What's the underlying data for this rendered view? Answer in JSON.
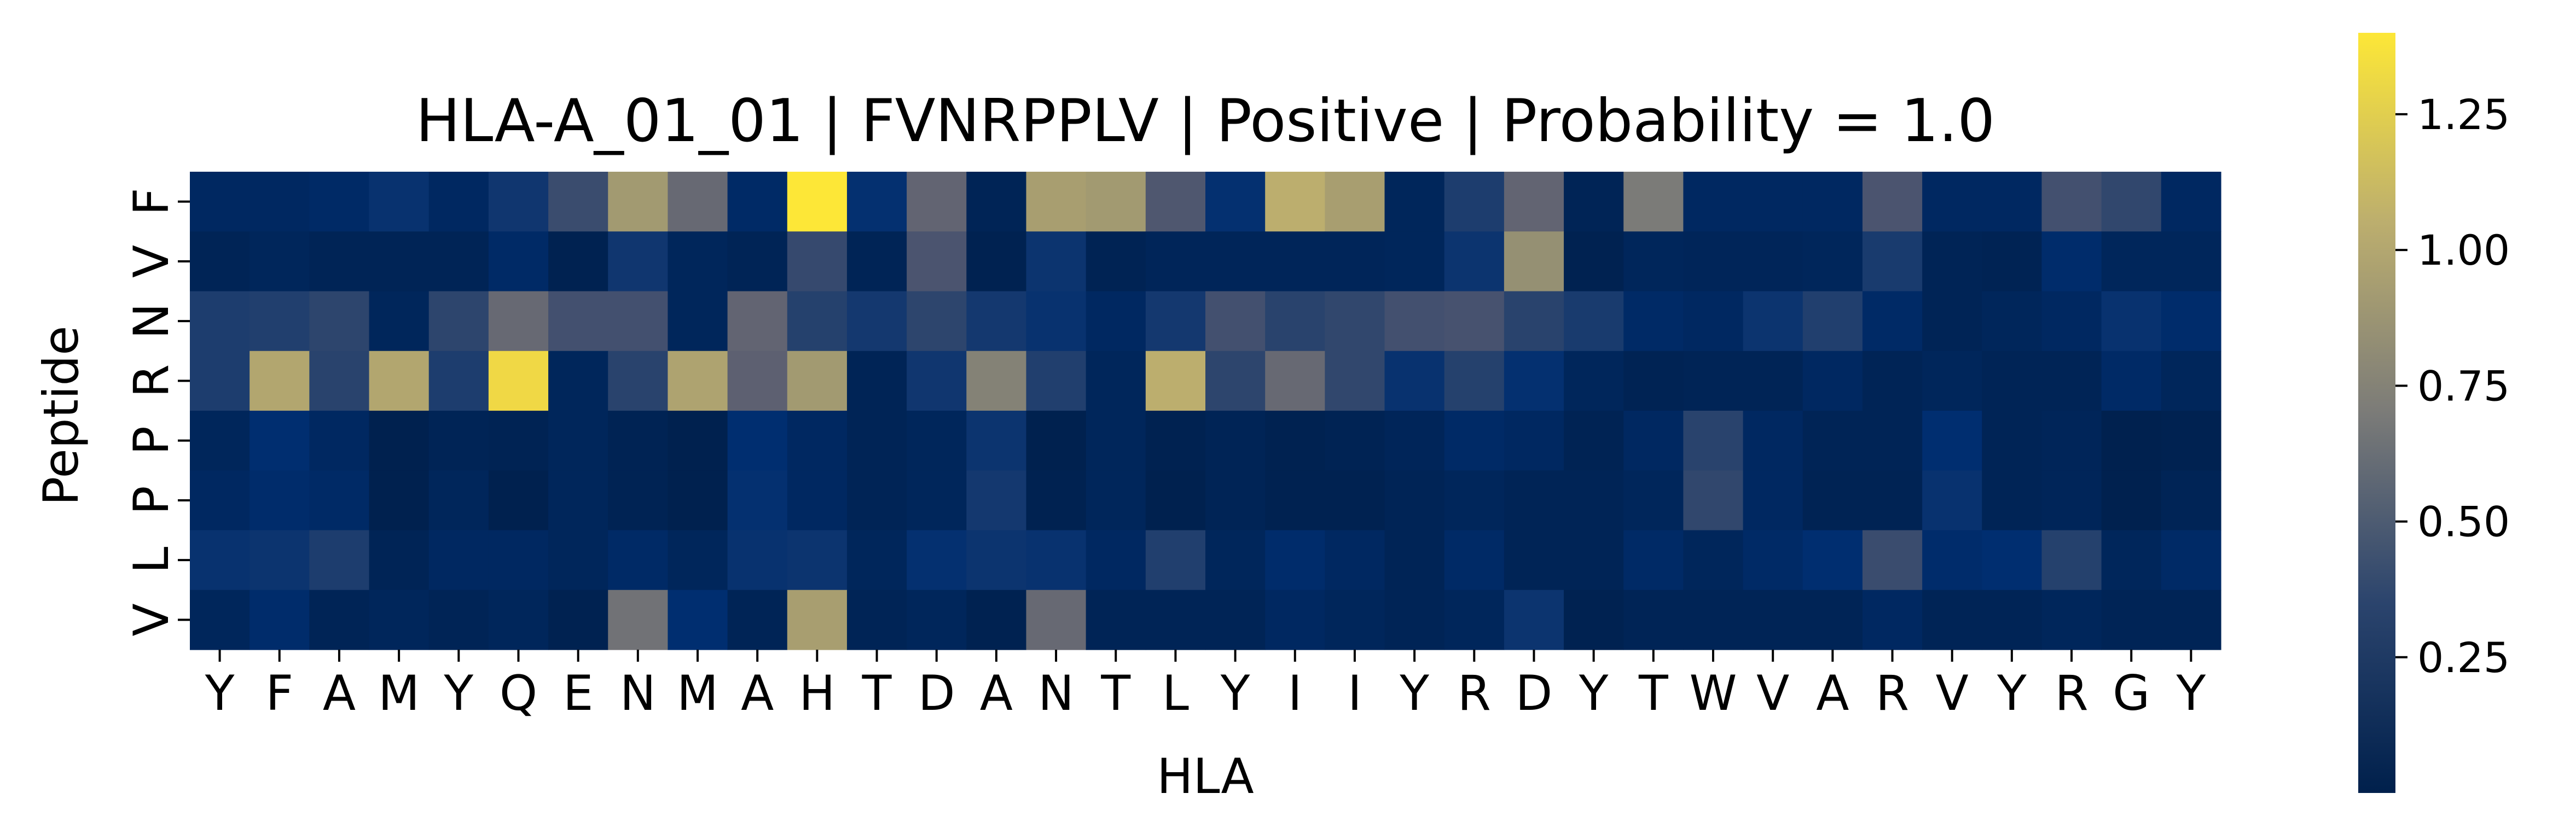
{
  "chart_data": {
    "type": "heatmap",
    "title": "HLA-A_01_01 | FVNRPPLV | Positive | Probability = 1.0",
    "xlabel": "HLA",
    "ylabel": "Peptide",
    "x_categories": [
      "Y",
      "F",
      "A",
      "M",
      "Y",
      "Q",
      "E",
      "N",
      "M",
      "A",
      "H",
      "T",
      "D",
      "A",
      "N",
      "T",
      "L",
      "Y",
      "I",
      "I",
      "Y",
      "R",
      "D",
      "Y",
      "T",
      "W",
      "V",
      "A",
      "R",
      "V",
      "Y",
      "R",
      "G",
      "Y"
    ],
    "y_categories": [
      "F",
      "V",
      "N",
      "R",
      "P",
      "P",
      "L",
      "V"
    ],
    "values": [
      [
        0.08,
        0.08,
        0.1,
        0.18,
        0.08,
        0.22,
        0.42,
        0.92,
        0.62,
        0.1,
        1.4,
        0.16,
        0.6,
        0.04,
        0.95,
        0.92,
        0.52,
        0.16,
        1.05,
        0.95,
        0.06,
        0.28,
        0.6,
        0.04,
        0.7,
        0.08,
        0.08,
        0.08,
        0.5,
        0.08,
        0.08,
        0.46,
        0.38,
        0.08
      ],
      [
        0.04,
        0.06,
        0.04,
        0.04,
        0.04,
        0.1,
        0.02,
        0.22,
        0.06,
        0.04,
        0.4,
        0.04,
        0.5,
        0.02,
        0.2,
        0.03,
        0.05,
        0.05,
        0.05,
        0.05,
        0.06,
        0.2,
        0.85,
        0.02,
        0.06,
        0.05,
        0.05,
        0.06,
        0.26,
        0.04,
        0.03,
        0.12,
        0.06,
        0.06
      ],
      [
        0.28,
        0.3,
        0.36,
        0.06,
        0.36,
        0.62,
        0.46,
        0.46,
        0.06,
        0.6,
        0.32,
        0.24,
        0.36,
        0.24,
        0.18,
        0.08,
        0.24,
        0.46,
        0.34,
        0.38,
        0.46,
        0.48,
        0.34,
        0.26,
        0.1,
        0.08,
        0.2,
        0.3,
        0.1,
        0.04,
        0.06,
        0.08,
        0.18,
        0.12
      ],
      [
        0.28,
        1.0,
        0.34,
        1.0,
        0.28,
        1.32,
        0.06,
        0.34,
        0.98,
        0.58,
        0.92,
        0.04,
        0.22,
        0.75,
        0.3,
        0.06,
        1.05,
        0.36,
        0.62,
        0.38,
        0.18,
        0.32,
        0.16,
        0.06,
        0.03,
        0.04,
        0.04,
        0.08,
        0.04,
        0.06,
        0.04,
        0.04,
        0.1,
        0.06
      ],
      [
        0.06,
        0.14,
        0.08,
        0.01,
        0.04,
        0.03,
        0.06,
        0.03,
        0.01,
        0.14,
        0.08,
        0.04,
        0.06,
        0.2,
        0.01,
        0.06,
        0.02,
        0.04,
        0.02,
        0.03,
        0.05,
        0.1,
        0.08,
        0.03,
        0.08,
        0.34,
        0.08,
        0.04,
        0.04,
        0.14,
        0.04,
        0.05,
        0.01,
        0.02
      ],
      [
        0.08,
        0.12,
        0.1,
        0.01,
        0.06,
        0.01,
        0.06,
        0.03,
        0.01,
        0.16,
        0.08,
        0.04,
        0.06,
        0.24,
        0.02,
        0.06,
        0.01,
        0.04,
        0.02,
        0.02,
        0.04,
        0.06,
        0.04,
        0.04,
        0.06,
        0.38,
        0.08,
        0.03,
        0.03,
        0.18,
        0.04,
        0.05,
        0.01,
        0.04
      ],
      [
        0.18,
        0.2,
        0.28,
        0.04,
        0.08,
        0.08,
        0.06,
        0.1,
        0.06,
        0.18,
        0.2,
        0.06,
        0.16,
        0.2,
        0.18,
        0.08,
        0.3,
        0.06,
        0.12,
        0.08,
        0.04,
        0.1,
        0.04,
        0.04,
        0.1,
        0.06,
        0.1,
        0.14,
        0.42,
        0.12,
        0.14,
        0.32,
        0.06,
        0.1
      ],
      [
        0.06,
        0.12,
        0.04,
        0.06,
        0.04,
        0.06,
        0.02,
        0.66,
        0.14,
        0.04,
        0.95,
        0.04,
        0.06,
        0.02,
        0.62,
        0.04,
        0.04,
        0.04,
        0.08,
        0.06,
        0.04,
        0.06,
        0.2,
        0.02,
        0.04,
        0.04,
        0.04,
        0.04,
        0.08,
        0.04,
        0.04,
        0.06,
        0.04,
        0.04
      ]
    ],
    "colormap": "cividis",
    "vmin": 0.0,
    "vmax": 1.4,
    "colorbar_ticks": [
      0.25,
      0.5,
      0.75,
      1.0,
      1.25
    ],
    "colorbar_ticklabels": [
      "0.25",
      "0.50",
      "0.75",
      "1.00",
      "1.25"
    ],
    "grid": false,
    "legend": "colorbar-right"
  }
}
